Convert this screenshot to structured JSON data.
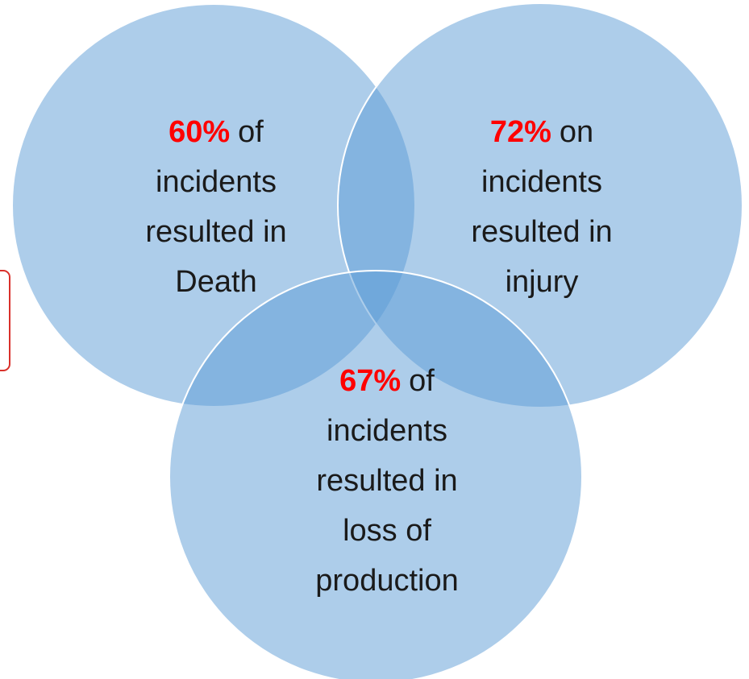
{
  "circles": [
    {
      "highlight": "60%",
      "first_line_rest": "of",
      "lines": [
        "incidents",
        "resulted in",
        "Death"
      ]
    },
    {
      "highlight": "72%",
      "first_line_rest": "on",
      "lines": [
        "incidents",
        "resulted in",
        "injury"
      ]
    },
    {
      "highlight": "67%",
      "first_line_rest": "of",
      "lines": [
        "incidents",
        "resulted in",
        "loss of",
        "production"
      ]
    }
  ]
}
